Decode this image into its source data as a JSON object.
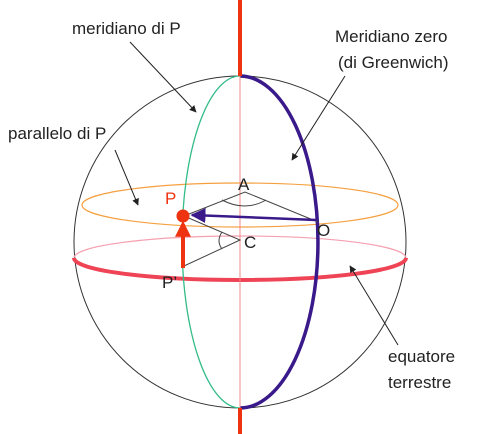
{
  "labels": {
    "meridian_p": "meridiano di P",
    "meridian_zero": "Meridiano zero",
    "greenwich": "(di Greenwich)",
    "parallel_p": "parallelo di P",
    "point_p": "P",
    "point_a": "A",
    "point_o": "O",
    "point_c": "C",
    "point_p_prime": "P’",
    "equator_1": "equatore",
    "equator_2": "terrestre"
  }
}
